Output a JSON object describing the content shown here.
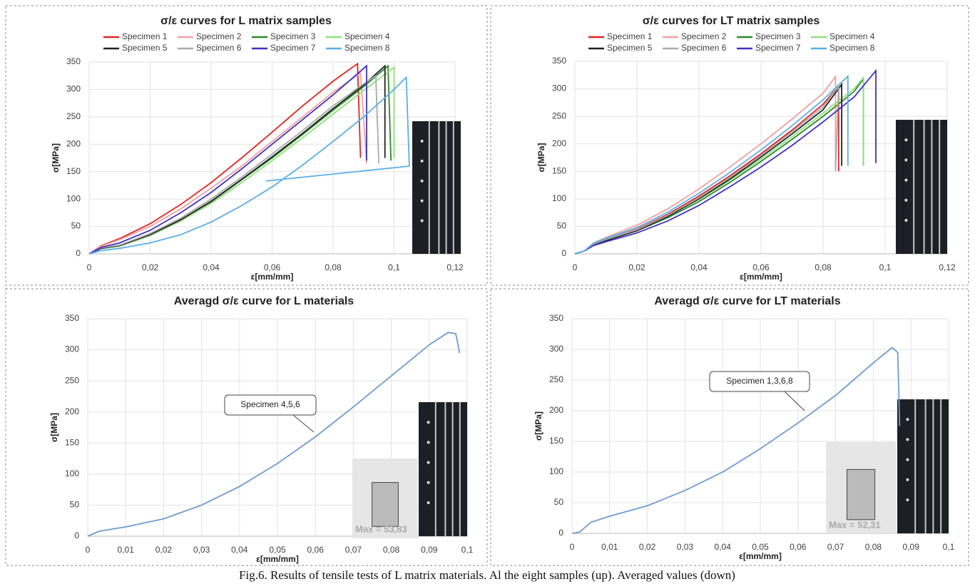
{
  "chart_data": [
    {
      "type": "line",
      "title": "σ/ε curves for L matrix samples",
      "xlabel": "ε[mm/mm]",
      "ylabel": "σ[MPa]",
      "xlim": [
        0,
        0.12
      ],
      "ylim": [
        0,
        350
      ],
      "grid": true,
      "legend": "top",
      "xticks": [
        0,
        {
          "value": 0.02,
          "label": "0,02"
        },
        {
          "value": 0.04,
          "label": "0,04"
        },
        {
          "value": 0.06,
          "label": "0,06"
        },
        {
          "value": 0.08,
          "label": "0,08"
        },
        {
          "value": 0.1,
          "label": "0,1"
        },
        {
          "value": 0.12,
          "label": "0,12"
        }
      ],
      "yticks": [
        0,
        50,
        100,
        150,
        200,
        250,
        300,
        350
      ],
      "series": [
        {
          "name": "Specimen 1",
          "color": "#e02424",
          "x": [
            0,
            0.004,
            0.01,
            0.02,
            0.03,
            0.04,
            0.05,
            0.06,
            0.07,
            0.08,
            0.088,
            0.089
          ],
          "values": [
            0,
            15,
            28,
            55,
            90,
            130,
            175,
            222,
            270,
            315,
            347,
            175
          ]
        },
        {
          "name": "Specimen 2",
          "color": "#f2a0a0",
          "x": [
            0,
            0.004,
            0.01,
            0.02,
            0.03,
            0.04,
            0.05,
            0.06,
            0.07,
            0.08,
            0.089,
            0.091
          ],
          "values": [
            0,
            14,
            26,
            50,
            82,
            120,
            160,
            205,
            250,
            295,
            330,
            165
          ]
        },
        {
          "name": "Specimen 3",
          "color": "#2a8a2a",
          "x": [
            0,
            0.004,
            0.01,
            0.02,
            0.03,
            0.04,
            0.05,
            0.06,
            0.07,
            0.08,
            0.09,
            0.098,
            0.099
          ],
          "values": [
            0,
            10,
            15,
            35,
            62,
            95,
            135,
            175,
            218,
            262,
            305,
            343,
            170
          ]
        },
        {
          "name": "Specimen 4",
          "color": "#8ee07a",
          "x": [
            0,
            0.004,
            0.01,
            0.02,
            0.03,
            0.04,
            0.05,
            0.06,
            0.07,
            0.08,
            0.09,
            0.1,
            0.1
          ],
          "values": [
            0,
            10,
            14,
            33,
            60,
            92,
            130,
            170,
            212,
            255,
            298,
            340,
            175
          ]
        },
        {
          "name": "Specimen 5",
          "color": "#222222",
          "x": [
            0,
            0.004,
            0.01,
            0.02,
            0.03,
            0.04,
            0.05,
            0.06,
            0.07,
            0.08,
            0.09,
            0.097,
            0.097
          ],
          "values": [
            0,
            10,
            15,
            35,
            62,
            96,
            136,
            177,
            220,
            265,
            308,
            343,
            175
          ]
        },
        {
          "name": "Specimen 6",
          "color": "#aaaaaa",
          "x": [
            0,
            0.004,
            0.01,
            0.02,
            0.03,
            0.04,
            0.05,
            0.06,
            0.07,
            0.08,
            0.09,
            0.094,
            0.095
          ],
          "values": [
            0,
            11,
            16,
            37,
            65,
            100,
            140,
            182,
            225,
            270,
            310,
            325,
            165
          ]
        },
        {
          "name": "Specimen 7",
          "color": "#4030c0",
          "x": [
            0,
            0.004,
            0.01,
            0.02,
            0.03,
            0.04,
            0.05,
            0.06,
            0.07,
            0.08,
            0.091,
            0.091
          ],
          "values": [
            0,
            12,
            20,
            43,
            75,
            112,
            155,
            200,
            245,
            290,
            343,
            170
          ]
        },
        {
          "name": "Specimen 8",
          "color": "#5aaee8",
          "x": [
            0,
            0.004,
            0.01,
            0.02,
            0.03,
            0.04,
            0.05,
            0.06,
            0.07,
            0.08,
            0.09,
            0.1,
            0.104,
            0.105,
            0.058
          ],
          "values": [
            0,
            6,
            10,
            20,
            35,
            58,
            88,
            122,
            162,
            205,
            250,
            300,
            322,
            160,
            133
          ]
        }
      ]
    },
    {
      "type": "line",
      "title": "σ/ε curves for LT matrix samples",
      "xlabel": "ε[mm/mm]",
      "ylabel": "σ[MPa]",
      "xlim": [
        0,
        0.12
      ],
      "ylim": [
        0,
        350
      ],
      "grid": true,
      "legend": "top",
      "xticks": [
        0,
        {
          "value": 0.02,
          "label": "0,02"
        },
        {
          "value": 0.04,
          "label": "0,04"
        },
        {
          "value": 0.06,
          "label": "0,06"
        },
        {
          "value": 0.08,
          "label": "0,08"
        },
        {
          "value": 0.1,
          "label": "0,1"
        },
        {
          "value": 0.12,
          "label": "0,12"
        }
      ],
      "yticks": [
        0,
        50,
        100,
        150,
        200,
        250,
        300,
        350
      ],
      "series": [
        {
          "name": "Specimen 1",
          "color": "#e02424",
          "x": [
            0,
            0.003,
            0.006,
            0.01,
            0.02,
            0.03,
            0.04,
            0.05,
            0.06,
            0.07,
            0.08,
            0.085,
            0.085
          ],
          "values": [
            0,
            5,
            18,
            26,
            45,
            72,
            105,
            142,
            182,
            225,
            272,
            305,
            150
          ]
        },
        {
          "name": "Specimen 2",
          "color": "#f2a0a0",
          "x": [
            0,
            0.003,
            0.006,
            0.01,
            0.02,
            0.03,
            0.04,
            0.05,
            0.06,
            0.07,
            0.08,
            0.084,
            0.084
          ],
          "values": [
            0,
            5,
            20,
            30,
            52,
            82,
            118,
            158,
            200,
            245,
            292,
            322,
            155
          ]
        },
        {
          "name": "Specimen 3",
          "color": "#2a8a2a",
          "x": [
            0,
            0.003,
            0.006,
            0.01,
            0.02,
            0.03,
            0.04,
            0.05,
            0.06,
            0.07,
            0.08,
            0.09,
            0.093,
            0.093
          ],
          "values": [
            0,
            5,
            17,
            25,
            42,
            66,
            95,
            130,
            168,
            208,
            250,
            295,
            318,
            160
          ]
        },
        {
          "name": "Specimen 4",
          "color": "#8ee07a",
          "x": [
            0,
            0.003,
            0.006,
            0.01,
            0.02,
            0.03,
            0.04,
            0.05,
            0.06,
            0.07,
            0.08,
            0.09,
            0.093,
            0.093
          ],
          "values": [
            0,
            5,
            18,
            26,
            44,
            69,
            99,
            134,
            172,
            213,
            256,
            300,
            320,
            160
          ]
        },
        {
          "name": "Specimen 5",
          "color": "#222222",
          "x": [
            0,
            0.003,
            0.006,
            0.01,
            0.02,
            0.03,
            0.04,
            0.05,
            0.06,
            0.07,
            0.08,
            0.086,
            0.086
          ],
          "values": [
            0,
            5,
            16,
            24,
            42,
            68,
            100,
            136,
            176,
            218,
            262,
            308,
            160
          ]
        },
        {
          "name": "Specimen 6",
          "color": "#aaaaaa",
          "x": [
            0,
            0.003,
            0.006,
            0.01,
            0.02,
            0.03,
            0.04,
            0.05,
            0.06,
            0.07,
            0.08,
            0.085,
            0.084
          ],
          "values": [
            0,
            5,
            18,
            26,
            44,
            70,
            102,
            139,
            179,
            222,
            267,
            305,
            150
          ]
        },
        {
          "name": "Specimen 7",
          "color": "#4030c0",
          "x": [
            0,
            0.003,
            0.006,
            0.01,
            0.02,
            0.03,
            0.04,
            0.05,
            0.06,
            0.07,
            0.08,
            0.09,
            0.097,
            0.097
          ],
          "values": [
            0,
            5,
            15,
            22,
            38,
            60,
            88,
            122,
            158,
            197,
            240,
            285,
            333,
            165
          ]
        },
        {
          "name": "Specimen 8",
          "color": "#5aaee8",
          "x": [
            0,
            0.003,
            0.006,
            0.01,
            0.02,
            0.03,
            0.04,
            0.05,
            0.06,
            0.07,
            0.08,
            0.088,
            0.088
          ],
          "values": [
            0,
            5,
            19,
            28,
            48,
            76,
            110,
            148,
            189,
            233,
            280,
            323,
            160
          ]
        }
      ]
    },
    {
      "type": "line",
      "title": "Averagd σ/ε curve for L materials",
      "xlabel": "ε[mm/mm]",
      "ylabel": "σ[MPa]",
      "xlim": [
        0,
        0.1
      ],
      "ylim": [
        0,
        350
      ],
      "grid": true,
      "color": "#6f9bd0",
      "xticks": [
        0,
        {
          "value": 0.01,
          "label": "0,01"
        },
        {
          "value": 0.02,
          "label": "0,02"
        },
        {
          "value": 0.03,
          "label": "0,03"
        },
        {
          "value": 0.04,
          "label": "0,04"
        },
        {
          "value": 0.05,
          "label": "0,05"
        },
        {
          "value": 0.06,
          "label": "0,06"
        },
        {
          "value": 0.07,
          "label": "0,07"
        },
        {
          "value": 0.08,
          "label": "0,08"
        },
        {
          "value": 0.09,
          "label": "0,09"
        },
        {
          "value": 0.1,
          "label": "0,1"
        }
      ],
      "yticks": [
        0,
        50,
        100,
        150,
        200,
        250,
        300,
        350
      ],
      "x": [
        0,
        0.003,
        0.01,
        0.02,
        0.03,
        0.04,
        0.05,
        0.06,
        0.07,
        0.08,
        0.09,
        0.095,
        0.097,
        0.098
      ],
      "values": [
        0,
        8,
        15,
        28,
        50,
        80,
        117,
        160,
        208,
        258,
        308,
        328,
        326,
        295
      ],
      "annotation": "Specimen 4,5,6",
      "inset_label": "Max = 53,83"
    },
    {
      "type": "line",
      "title": "Averagd σ/ε curve for LT materials",
      "xlabel": "ε[mm/mm]",
      "ylabel": "σ[MPa]",
      "xlim": [
        0,
        0.1
      ],
      "ylim": [
        0,
        350
      ],
      "grid": true,
      "color": "#6f9bd0",
      "xticks": [
        0,
        {
          "value": 0.01,
          "label": "0,01"
        },
        {
          "value": 0.02,
          "label": "0,02"
        },
        {
          "value": 0.03,
          "label": "0,03"
        },
        {
          "value": 0.04,
          "label": "0,04"
        },
        {
          "value": 0.05,
          "label": "0,05"
        },
        {
          "value": 0.06,
          "label": "0,06"
        },
        {
          "value": 0.07,
          "label": "0,07"
        },
        {
          "value": 0.08,
          "label": "0,08"
        },
        {
          "value": 0.09,
          "label": "0,09"
        },
        {
          "value": 0.1,
          "label": "0,1"
        }
      ],
      "yticks": [
        0,
        50,
        100,
        150,
        200,
        250,
        300,
        350
      ],
      "x": [
        0,
        0.002,
        0.005,
        0.01,
        0.02,
        0.03,
        0.04,
        0.05,
        0.06,
        0.07,
        0.08,
        0.085,
        0.0865,
        0.087
      ],
      "values": [
        0,
        2,
        18,
        28,
        45,
        70,
        100,
        138,
        180,
        225,
        278,
        303,
        295,
        175
      ],
      "annotation": "Specimen 1,3,6,8",
      "inset_label": "Max = 52,31"
    }
  ],
  "caption": "Fig.6. Results of tensile tests of L matrix materials. Al the eight samples (up). Averaged values (down)"
}
